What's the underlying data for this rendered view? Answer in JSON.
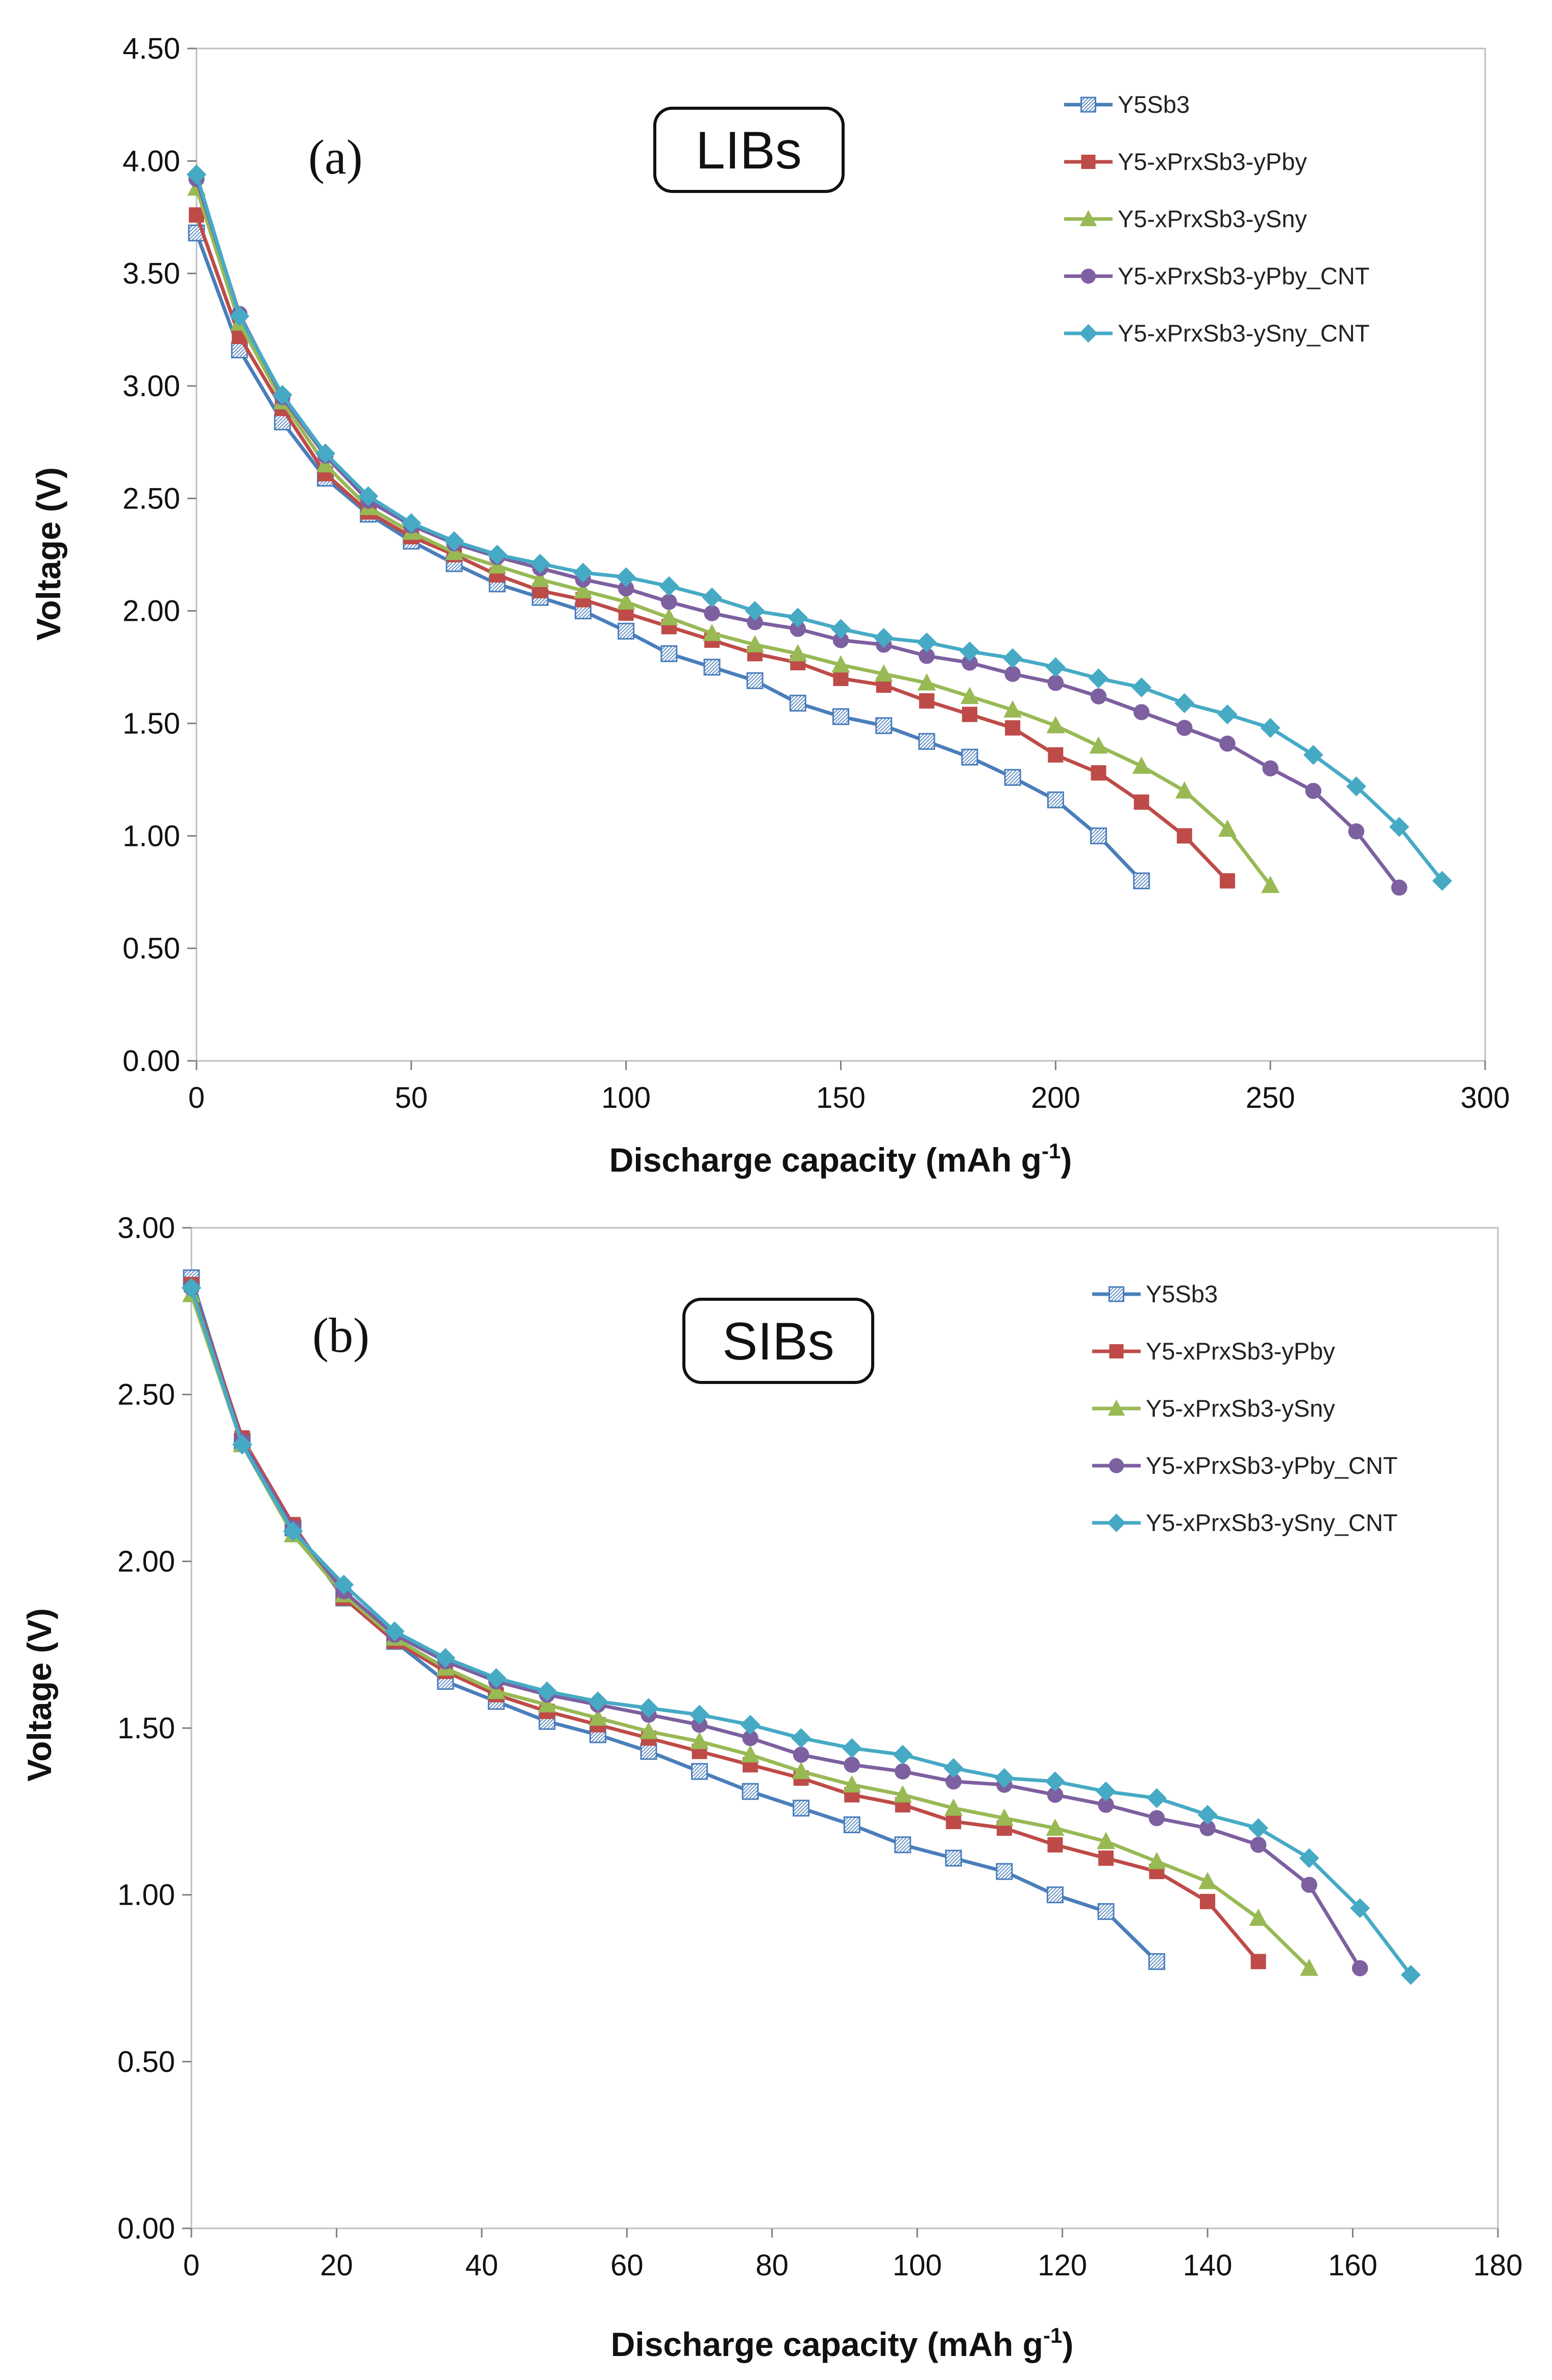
{
  "series_styles": [
    {
      "name": "Y5Sb3",
      "color": "#4a7ebb",
      "marker": "square-hatched"
    },
    {
      "name": "Y5-xPrxSb3-yPby",
      "color": "#be4b48",
      "marker": "square"
    },
    {
      "name": "Y5-xPrxSb3-ySny",
      "color": "#98b954",
      "marker": "triangle"
    },
    {
      "name": "Y5-xPrxSb3-yPby_CNT",
      "color": "#7d60a0",
      "marker": "circle"
    },
    {
      "name": "Y5-xPrxSb3-ySny_CNT",
      "color": "#46aac5",
      "marker": "diamond"
    }
  ],
  "chart_data": [
    {
      "type": "line",
      "panel_label": "(a)",
      "annotation": "LIBs",
      "xlabel": "Discharge capacity (mAh g",
      "xlabel_sup": "-1",
      "xlabel_close": ")",
      "ylabel": "Voltage (V)",
      "xlim": [
        0,
        300
      ],
      "ylim": [
        0,
        4.5
      ],
      "xticks": [
        "0",
        "50",
        "100",
        "150",
        "200",
        "250",
        "300"
      ],
      "yticks": [
        "0.00",
        "0.50",
        "1.00",
        "1.50",
        "2.00",
        "2.50",
        "3.00",
        "3.50",
        "4.00",
        "4.50"
      ],
      "grid": false,
      "legend_position": "top-right",
      "series": [
        {
          "name": "Y5Sb3",
          "x": [
            0,
            10,
            20,
            30,
            40,
            50,
            60,
            70,
            80,
            90,
            100,
            110,
            120,
            130,
            140,
            150,
            160,
            170,
            180,
            190,
            200,
            210,
            220
          ],
          "y": [
            3.68,
            3.16,
            2.84,
            2.59,
            2.43,
            2.31,
            2.21,
            2.12,
            2.06,
            2.0,
            1.91,
            1.81,
            1.75,
            1.69,
            1.59,
            1.53,
            1.49,
            1.42,
            1.35,
            1.26,
            1.16,
            1.0,
            0.8
          ]
        },
        {
          "name": "Y5-xPrxSb3-yPby",
          "x": [
            0,
            10,
            20,
            30,
            40,
            50,
            60,
            70,
            80,
            90,
            100,
            110,
            120,
            130,
            140,
            150,
            160,
            170,
            180,
            190,
            200,
            210,
            220,
            230,
            240
          ],
          "y": [
            3.76,
            3.22,
            2.9,
            2.61,
            2.44,
            2.33,
            2.25,
            2.16,
            2.09,
            2.05,
            1.99,
            1.93,
            1.87,
            1.81,
            1.77,
            1.7,
            1.67,
            1.6,
            1.54,
            1.48,
            1.36,
            1.28,
            1.15,
            1.0,
            0.8
          ]
        },
        {
          "name": "Y5-xPrxSb3-ySny",
          "x": [
            0,
            10,
            20,
            30,
            40,
            50,
            60,
            70,
            80,
            90,
            100,
            110,
            120,
            130,
            140,
            150,
            160,
            170,
            180,
            190,
            200,
            210,
            220,
            230,
            240,
            250
          ],
          "y": [
            3.88,
            3.28,
            2.93,
            2.65,
            2.46,
            2.35,
            2.26,
            2.2,
            2.14,
            2.09,
            2.04,
            1.97,
            1.9,
            1.85,
            1.81,
            1.76,
            1.72,
            1.68,
            1.62,
            1.56,
            1.49,
            1.4,
            1.31,
            1.2,
            1.03,
            0.78
          ]
        },
        {
          "name": "Y5-xPrxSb3-yPby_CNT",
          "x": [
            0,
            10,
            20,
            30,
            40,
            50,
            60,
            70,
            80,
            90,
            100,
            110,
            120,
            130,
            140,
            150,
            160,
            170,
            180,
            190,
            200,
            210,
            220,
            230,
            240,
            250,
            260,
            270,
            280
          ],
          "y": [
            3.92,
            3.32,
            2.95,
            2.69,
            2.49,
            2.38,
            2.3,
            2.24,
            2.19,
            2.14,
            2.1,
            2.04,
            1.99,
            1.95,
            1.92,
            1.87,
            1.85,
            1.8,
            1.77,
            1.72,
            1.68,
            1.62,
            1.55,
            1.48,
            1.41,
            1.3,
            1.2,
            1.02,
            0.77
          ]
        },
        {
          "name": "Y5-xPrxSb3-ySny_CNT",
          "x": [
            0,
            10,
            20,
            30,
            40,
            50,
            60,
            70,
            80,
            90,
            100,
            110,
            120,
            130,
            140,
            150,
            160,
            170,
            180,
            190,
            200,
            210,
            220,
            230,
            240,
            250,
            260,
            270,
            280,
            290
          ],
          "y": [
            3.94,
            3.31,
            2.96,
            2.7,
            2.51,
            2.39,
            2.31,
            2.25,
            2.21,
            2.17,
            2.15,
            2.11,
            2.06,
            2.0,
            1.97,
            1.92,
            1.88,
            1.86,
            1.82,
            1.79,
            1.75,
            1.7,
            1.66,
            1.59,
            1.54,
            1.48,
            1.36,
            1.22,
            1.04,
            0.8
          ]
        }
      ]
    },
    {
      "type": "line",
      "panel_label": "(b)",
      "annotation": "SIBs",
      "xlabel": "Discharge capacity (mAh g",
      "xlabel_sup": "-1",
      "xlabel_close": ")",
      "ylabel": "Voltage (V)",
      "xlim": [
        0,
        180
      ],
      "ylim": [
        0,
        3.0
      ],
      "xticks": [
        "0",
        "20",
        "40",
        "60",
        "80",
        "100",
        "120",
        "140",
        "160",
        "180"
      ],
      "yticks": [
        "0.00",
        "0.50",
        "1.00",
        "1.50",
        "2.00",
        "2.50",
        "3.00"
      ],
      "grid": false,
      "legend_position": "top-right",
      "series": [
        {
          "name": "Y5Sb3",
          "x": [
            0,
            7,
            14,
            21,
            28,
            35,
            42,
            49,
            56,
            63,
            70,
            77,
            84,
            91,
            98,
            105,
            112,
            119,
            126,
            133
          ],
          "y": [
            2.85,
            2.36,
            2.1,
            1.89,
            1.76,
            1.64,
            1.58,
            1.52,
            1.48,
            1.43,
            1.37,
            1.31,
            1.26,
            1.21,
            1.15,
            1.11,
            1.07,
            1.0,
            0.95,
            0.8
          ]
        },
        {
          "name": "Y5-xPrxSb3-yPby",
          "x": [
            0,
            7,
            14,
            21,
            28,
            35,
            42,
            49,
            56,
            63,
            70,
            77,
            84,
            91,
            98,
            105,
            112,
            119,
            126,
            133,
            140,
            147
          ],
          "y": [
            2.83,
            2.37,
            2.11,
            1.89,
            1.76,
            1.67,
            1.6,
            1.55,
            1.51,
            1.47,
            1.43,
            1.39,
            1.35,
            1.3,
            1.27,
            1.22,
            1.2,
            1.15,
            1.11,
            1.07,
            0.98,
            0.8
          ]
        },
        {
          "name": "Y5-xPrxSb3-ySny",
          "x": [
            0,
            7,
            14,
            21,
            28,
            35,
            42,
            49,
            56,
            63,
            70,
            77,
            84,
            91,
            98,
            105,
            112,
            119,
            126,
            133,
            140,
            147,
            154
          ],
          "y": [
            2.8,
            2.35,
            2.08,
            1.9,
            1.77,
            1.68,
            1.61,
            1.57,
            1.53,
            1.49,
            1.46,
            1.42,
            1.37,
            1.33,
            1.3,
            1.26,
            1.23,
            1.2,
            1.16,
            1.1,
            1.04,
            0.93,
            0.78
          ]
        },
        {
          "name": "Y5-xPrxSb3-yPby_CNT",
          "x": [
            0,
            7,
            14,
            21,
            28,
            35,
            42,
            49,
            56,
            63,
            70,
            77,
            84,
            91,
            98,
            105,
            112,
            119,
            126,
            133,
            140,
            147,
            154,
            161
          ],
          "y": [
            2.82,
            2.36,
            2.1,
            1.91,
            1.78,
            1.7,
            1.64,
            1.6,
            1.57,
            1.54,
            1.51,
            1.47,
            1.42,
            1.39,
            1.37,
            1.34,
            1.33,
            1.3,
            1.27,
            1.23,
            1.2,
            1.15,
            1.03,
            0.78
          ]
        },
        {
          "name": "Y5-xPrxSb3-ySny_CNT",
          "x": [
            0,
            7,
            14,
            21,
            28,
            35,
            42,
            49,
            56,
            63,
            70,
            77,
            84,
            91,
            98,
            105,
            112,
            119,
            126,
            133,
            140,
            147,
            154,
            161,
            168
          ],
          "y": [
            2.82,
            2.35,
            2.09,
            1.93,
            1.79,
            1.71,
            1.65,
            1.61,
            1.58,
            1.56,
            1.54,
            1.51,
            1.47,
            1.44,
            1.42,
            1.38,
            1.35,
            1.34,
            1.31,
            1.29,
            1.24,
            1.2,
            1.11,
            0.96,
            0.76
          ]
        }
      ]
    }
  ]
}
